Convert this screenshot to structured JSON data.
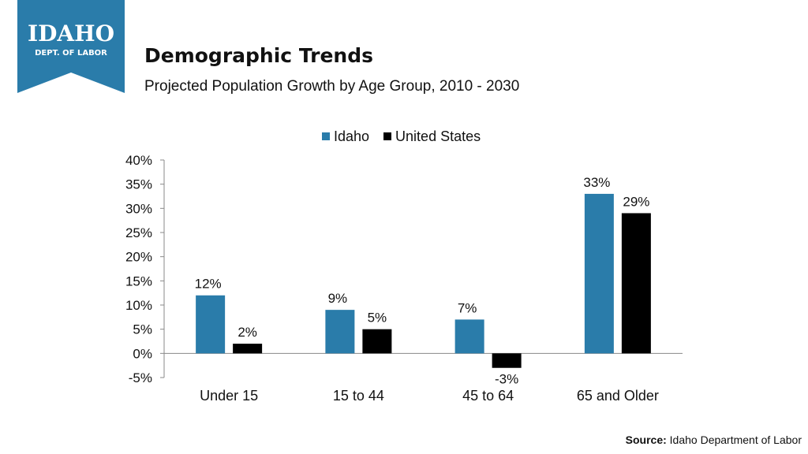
{
  "logo": {
    "line1": "IDAHO",
    "line2": "DEPT. OF LABOR"
  },
  "header": {
    "title": "Demographic Trends",
    "subtitle": "Projected Population Growth by Age Group, 2010 - 2030"
  },
  "source": {
    "label": "Source:",
    "text": "Idaho Department of Labor"
  },
  "colors": {
    "idaho": "#2A7CAA",
    "us": "#000000",
    "logo": "#2A7CAA"
  },
  "chart_data": {
    "type": "bar",
    "title": "Projected Population Growth by Age Group, 2010 - 2030",
    "categories": [
      "Under 15",
      "15 to 44",
      "45 to 64",
      "65 and Older"
    ],
    "series": [
      {
        "name": "Idaho",
        "values": [
          12,
          9,
          7,
          33
        ],
        "labels": [
          "12%",
          "9%",
          "7%",
          "33%"
        ]
      },
      {
        "name": "United States",
        "values": [
          2,
          5,
          -3,
          29
        ],
        "labels": [
          "2%",
          "5%",
          "-3%",
          "29%"
        ]
      }
    ],
    "yticks": [
      "40%",
      "35%",
      "30%",
      "25%",
      "20%",
      "15%",
      "10%",
      "5%",
      "0%",
      "-5%"
    ],
    "ylim": [
      -5,
      40
    ],
    "xlabel": "",
    "ylabel": "",
    "legend": "top-center",
    "grid": false
  }
}
